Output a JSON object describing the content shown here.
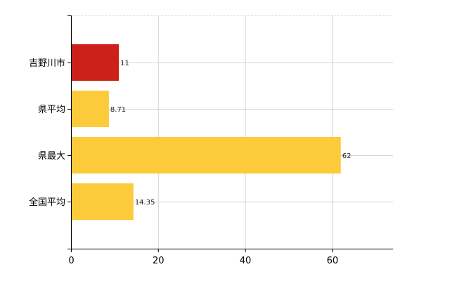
{
  "chart_data": {
    "type": "bar",
    "orientation": "horizontal",
    "categories": [
      "吉野川市",
      "県平均",
      "県最大",
      "全国平均"
    ],
    "values": [
      11,
      8.71,
      62,
      14.35
    ],
    "value_labels": [
      "11",
      "8.71",
      "62",
      "14.35"
    ],
    "colors": [
      "#cc2118",
      "#fbcb3c",
      "#fbcb3c",
      "#fbcb3c"
    ],
    "highlight_color": "#cc2118",
    "bar_color": "#fbcb3c",
    "xlim": [
      0,
      74
    ],
    "x_ticks": [
      0,
      20,
      40,
      60
    ],
    "grid": true,
    "title": "",
    "xlabel": "",
    "ylabel": ""
  }
}
